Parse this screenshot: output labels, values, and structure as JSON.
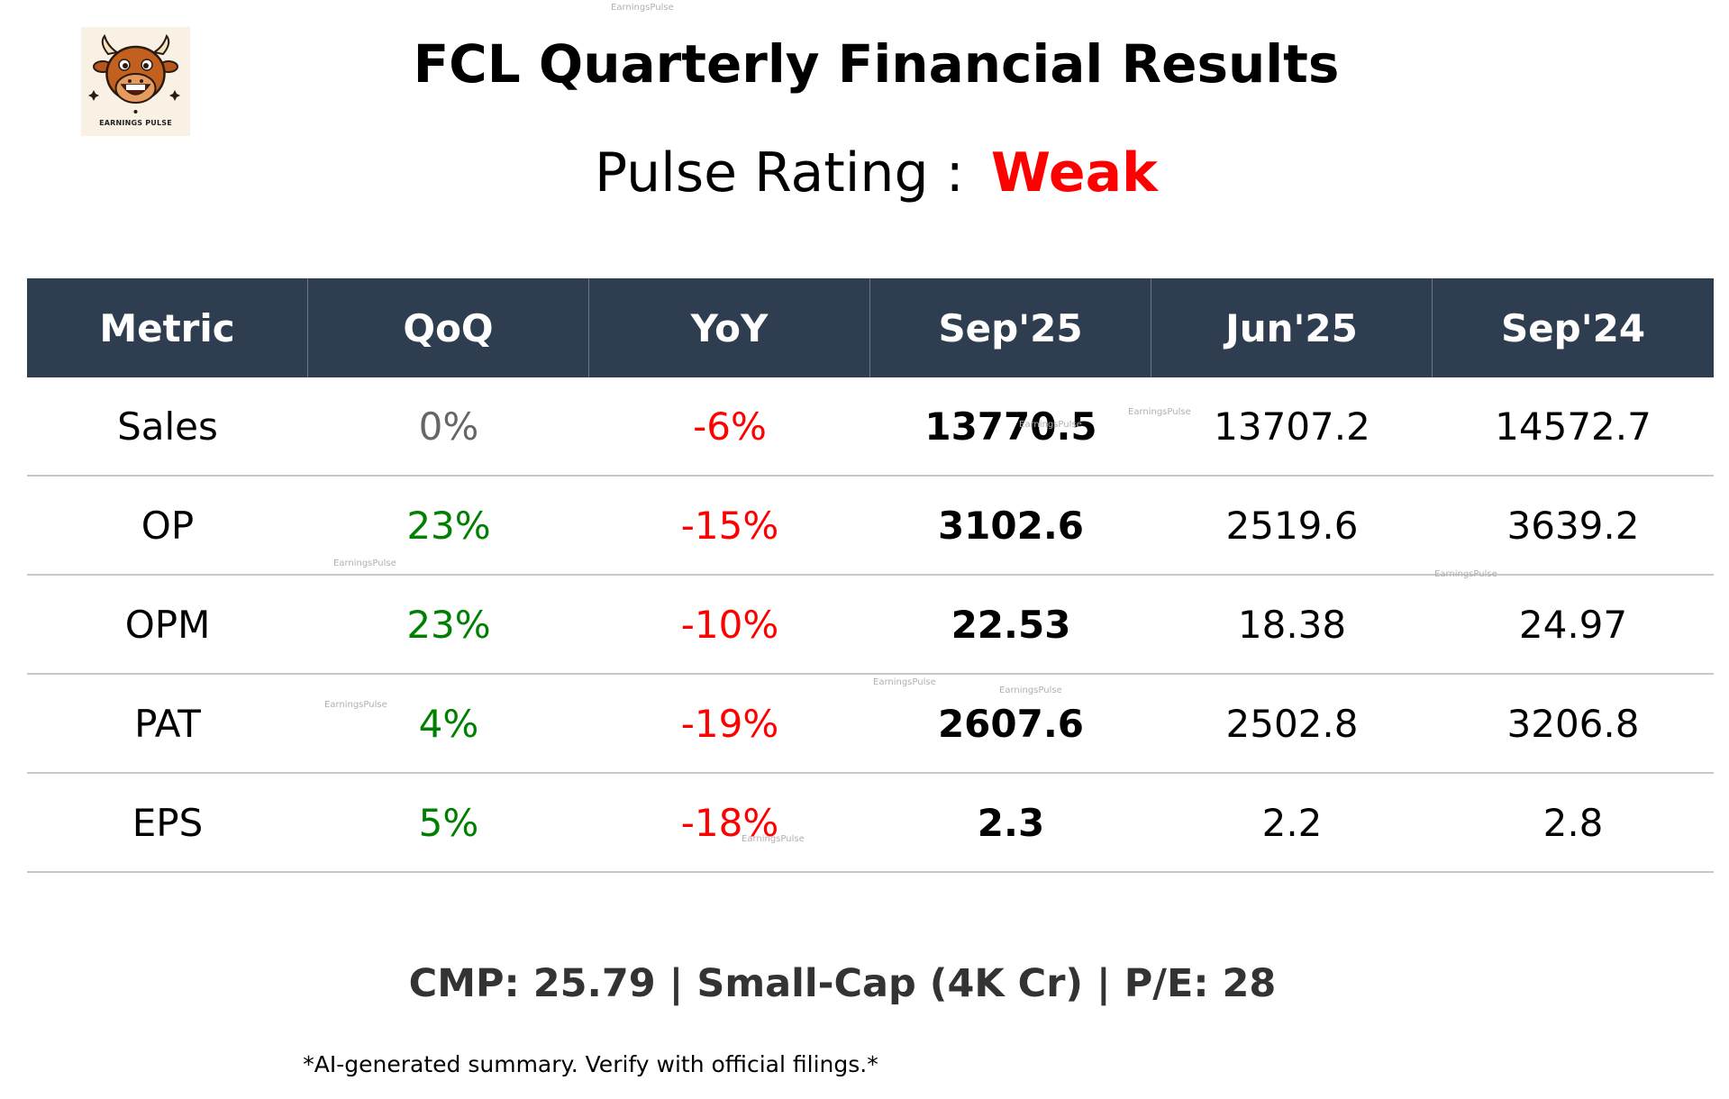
{
  "logo": {
    "text": "EARNINGS PULSE",
    "icon": "bull-mascot-icon"
  },
  "header": {
    "title": "FCL Quarterly Financial Results",
    "rating_label": "Pulse Rating :",
    "rating_value": "Weak"
  },
  "table": {
    "columns": [
      "Metric",
      "QoQ",
      "YoY",
      "Sep'25",
      "Jun'25",
      "Sep'24"
    ],
    "rows": [
      {
        "metric": "Sales",
        "qoq": "0%",
        "yoy": "-6%",
        "current": "13770.5",
        "prev_q": "13707.2",
        "prev_y": "14572.7"
      },
      {
        "metric": "OP",
        "qoq": "23%",
        "yoy": "-15%",
        "current": "3102.6",
        "prev_q": "2519.6",
        "prev_y": "3639.2"
      },
      {
        "metric": "OPM",
        "qoq": "23%",
        "yoy": "-10%",
        "current": "22.53",
        "prev_q": "18.38",
        "prev_y": "24.97"
      },
      {
        "metric": "PAT",
        "qoq": "4%",
        "yoy": "-19%",
        "current": "2607.6",
        "prev_q": "2502.8",
        "prev_y": "3206.8"
      },
      {
        "metric": "EPS",
        "qoq": "5%",
        "yoy": "-18%",
        "current": "2.3",
        "prev_q": "2.2",
        "prev_y": "2.8"
      }
    ]
  },
  "footer": {
    "info": "CMP: 25.79 | Small-Cap (4K Cr) | P/E: 28",
    "disclaimer": "*AI-generated summary. Verify with official filings.*"
  },
  "watermark": "EarningsPulse",
  "colors": {
    "header_bg": "#2e3e50",
    "positive": "#008000",
    "negative": "#ff0000",
    "neutral": "#666666",
    "rating": "#ff0000"
  }
}
